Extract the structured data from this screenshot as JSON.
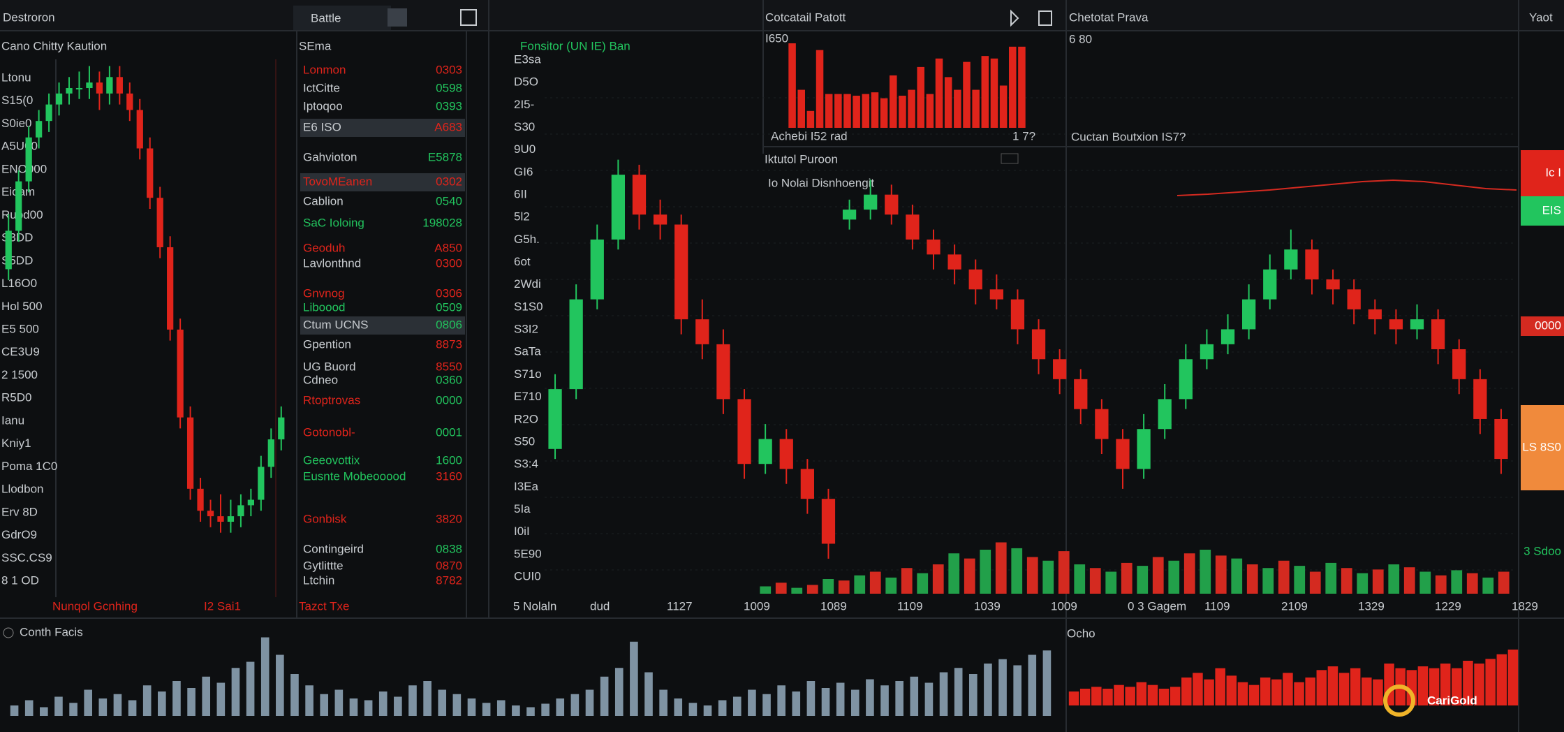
{
  "header": {
    "app_title": "Destroron",
    "tab": "Battle",
    "mid_title": "Cotcatail Patott",
    "right_title": "Chetotat Prava",
    "right_corner": "Yaot"
  },
  "left_panel": {
    "title": "Cano Chitty Kaution",
    "footer_left": "Nunqol Gcnhing",
    "footer_right": "I2 Sai1",
    "axis_labels": [
      "Ltonu",
      "S15(0",
      "S0ie0",
      "A5U00",
      "ENO000",
      "Eioam",
      "Rubd00",
      "S3DD",
      "S5DD",
      "L16O0",
      "Hol 500",
      "E5 500",
      "CE3U9",
      "2 1500",
      "R5D0",
      "Ianu",
      "Kniy1",
      "Poma 1C0",
      "Llodbon",
      "Erv 8D",
      "GdrO9",
      "SSC.CS9",
      "8 1 OD"
    ],
    "ylim": [
      0,
      100
    ],
    "candles": [
      [
        60,
        70,
        58,
        67
      ],
      [
        67,
        78,
        65,
        76
      ],
      [
        76,
        86,
        74,
        84
      ],
      [
        84,
        89,
        82,
        87
      ],
      [
        87,
        92,
        85,
        90
      ],
      [
        90,
        94,
        88,
        92
      ],
      [
        92,
        95,
        90,
        93
      ],
      [
        93,
        96,
        91,
        93
      ],
      [
        93,
        97,
        91,
        94
      ],
      [
        94,
        96,
        89,
        92
      ],
      [
        92,
        97,
        90,
        95
      ],
      [
        95,
        97,
        90,
        92
      ],
      [
        92,
        94,
        87,
        89
      ],
      [
        89,
        91,
        80,
        82
      ],
      [
        82,
        84,
        71,
        73
      ],
      [
        73,
        75,
        62,
        64
      ],
      [
        64,
        66,
        47,
        49
      ],
      [
        49,
        51,
        31,
        33
      ],
      [
        33,
        35,
        18,
        20
      ],
      [
        20,
        22,
        14,
        16
      ],
      [
        16,
        18,
        13,
        15
      ],
      [
        15,
        19,
        12,
        14
      ],
      [
        14,
        18,
        12,
        15
      ],
      [
        15,
        19,
        13,
        17
      ],
      [
        17,
        20,
        15,
        18
      ],
      [
        18,
        26,
        16,
        24
      ],
      [
        24,
        31,
        22,
        29
      ],
      [
        29,
        35,
        27,
        33
      ]
    ]
  },
  "watchlist": {
    "title": "SEma",
    "footer": "Tazct Txe",
    "rows": [
      {
        "name": "Lonmon",
        "value": "0303",
        "name_color": "#e0241b",
        "value_color": "#e0241b",
        "highlight": false
      },
      {
        "name": "IctCitte",
        "value": "0598",
        "name_color": "#c8ccd0",
        "value_color": "#22c55e",
        "highlight": false
      },
      {
        "name": "Iptoqoo",
        "value": "0393",
        "name_color": "#c8ccd0",
        "value_color": "#22c55e",
        "highlight": false
      },
      {
        "name": "E6 ISO",
        "value": "A683",
        "name_color": "#c8ccd0",
        "value_color": "#e0241b",
        "highlight": true
      },
      {
        "name": "Gahvioton",
        "value": "E5878",
        "name_color": "#c8ccd0",
        "value_color": "#22c55e",
        "highlight": false
      },
      {
        "name": "TovoMEanen",
        "value": "0302",
        "name_color": "#e0241b",
        "value_color": "#e0241b",
        "highlight": true
      },
      {
        "name": "Cablion",
        "value": "0540",
        "name_color": "#c8ccd0",
        "value_color": "#22c55e",
        "highlight": false
      },
      {
        "name": "SaC Ioloing",
        "value": "198028",
        "name_color": "#22c55e",
        "value_color": "#22c55e",
        "highlight": false
      },
      {
        "name": "Geoduh",
        "value": "A850",
        "name_color": "#e0241b",
        "value_color": "#e0241b",
        "highlight": false
      },
      {
        "name": "Lavlonthnd",
        "value": "0300",
        "name_color": "#c8ccd0",
        "value_color": "#e0241b",
        "highlight": false
      },
      {
        "name": "Gnvnog",
        "value": "0306",
        "name_color": "#e0241b",
        "value_color": "#e0241b",
        "highlight": false
      },
      {
        "name": "Liboood",
        "value": "0509",
        "name_color": "#22c55e",
        "value_color": "#22c55e",
        "highlight": false
      },
      {
        "name": "Ctum UCNS",
        "value": "0806",
        "name_color": "#c8ccd0",
        "value_color": "#22c55e",
        "highlight": true
      },
      {
        "name": "Gpention",
        "value": "8873",
        "name_color": "#c8ccd0",
        "value_color": "#e0241b",
        "highlight": false
      },
      {
        "name": "UG Buord",
        "value": "8550",
        "name_color": "#c8ccd0",
        "value_color": "#e0241b",
        "highlight": false
      },
      {
        "name": "Cdneo",
        "value": "0360",
        "name_color": "#c8ccd0",
        "value_color": "#22c55e",
        "highlight": false
      },
      {
        "name": "Rtoptrovas",
        "value": "0000",
        "name_color": "#e0241b",
        "value_color": "#22c55e",
        "highlight": false
      },
      {
        "name": "Gotonobl-",
        "value": "0001",
        "name_color": "#e0241b",
        "value_color": "#22c55e",
        "highlight": false
      },
      {
        "name": "Geeovottix",
        "value": "1600",
        "name_color": "#22c55e",
        "value_color": "#22c55e",
        "highlight": false
      },
      {
        "name": "Eusnte Mobeooood",
        "value": "3160",
        "name_color": "#22c55e",
        "value_color": "#e0241b",
        "highlight": false
      },
      {
        "name": "Gonbisk",
        "value": "3820",
        "name_color": "#e0241b",
        "value_color": "#e0241b",
        "highlight": false
      },
      {
        "name": "Contingeird",
        "value": "0838",
        "name_color": "#c8ccd0",
        "value_color": "#22c55e",
        "highlight": false
      },
      {
        "name": "Gytlittte",
        "value": "0870",
        "name_color": "#c8ccd0",
        "value_color": "#e0241b",
        "highlight": false
      },
      {
        "name": "Ltchin",
        "value": "8782",
        "name_color": "#c8ccd0",
        "value_color": "#e0241b",
        "highlight": false
      }
    ]
  },
  "main_chart": {
    "title": "Fonsitor (UN IE) Ban",
    "axis_labels": [
      "E3sa",
      "D5O",
      "2I5-",
      "S30",
      "9U0",
      "GI6",
      "6II",
      "5l2",
      "G5h.",
      "6ot",
      "2Wdi",
      "S1S0",
      "S3I2",
      "SaTa",
      "S71o",
      "E710",
      "R2O",
      "S50",
      "S3:4",
      "I3Ea",
      "5Ia",
      "I0iI",
      "5E90",
      "CUI0"
    ],
    "x_labels": [
      "5 Nolaln",
      "dud",
      "1127",
      "1009",
      "1089",
      "1109",
      "1039",
      "1009",
      "0 3 Gagem",
      "1109",
      "2109",
      "1329",
      "1229",
      "1829"
    ],
    "ylim": [
      0,
      100
    ],
    "candles": [
      [
        30,
        45,
        28,
        42
      ],
      [
        42,
        63,
        40,
        60
      ],
      [
        60,
        75,
        58,
        72
      ],
      [
        72,
        88,
        70,
        85
      ],
      [
        85,
        87,
        74,
        77
      ],
      [
        77,
        80,
        72,
        75
      ],
      [
        75,
        77,
        53,
        56
      ],
      [
        56,
        60,
        48,
        51
      ],
      [
        51,
        54,
        37,
        40
      ],
      [
        40,
        42,
        24,
        27
      ],
      [
        27,
        35,
        25,
        32
      ],
      [
        32,
        34,
        23,
        26
      ],
      [
        26,
        28,
        17,
        20
      ],
      [
        20,
        22,
        8,
        11
      ],
      [
        76,
        80,
        74,
        78
      ],
      [
        78,
        84,
        76,
        81
      ],
      [
        81,
        83,
        75,
        77
      ],
      [
        77,
        79,
        70,
        72
      ],
      [
        72,
        74,
        66,
        69
      ],
      [
        69,
        71,
        63,
        66
      ],
      [
        66,
        68,
        59,
        62
      ],
      [
        62,
        65,
        58,
        60
      ],
      [
        60,
        62,
        51,
        54
      ],
      [
        54,
        56,
        45,
        48
      ],
      [
        48,
        50,
        41,
        44
      ],
      [
        44,
        46,
        35,
        38
      ],
      [
        38,
        40,
        29,
        32
      ],
      [
        32,
        34,
        22,
        26
      ],
      [
        26,
        37,
        24,
        34
      ],
      [
        34,
        43,
        32,
        40
      ],
      [
        40,
        51,
        38,
        48
      ],
      [
        48,
        54,
        46,
        51
      ],
      [
        51,
        57,
        49,
        54
      ],
      [
        54,
        63,
        52,
        60
      ],
      [
        60,
        69,
        58,
        66
      ],
      [
        66,
        74,
        64,
        70
      ],
      [
        70,
        72,
        61,
        64
      ],
      [
        64,
        66,
        59,
        62
      ],
      [
        62,
        64,
        55,
        58
      ],
      [
        58,
        60,
        53,
        56
      ],
      [
        56,
        58,
        51,
        54
      ],
      [
        54,
        59,
        52,
        56
      ],
      [
        56,
        58,
        47,
        50
      ],
      [
        50,
        52,
        41,
        44
      ],
      [
        44,
        46,
        33,
        36
      ],
      [
        36,
        38,
        25,
        28
      ]
    ],
    "volume": {
      "ylim": [
        0,
        100
      ],
      "colors": [
        "#22a04a",
        "#d42a20"
      ],
      "values": [
        10,
        15,
        8,
        12,
        20,
        18,
        25,
        30,
        22,
        35,
        28,
        40,
        55,
        48,
        60,
        70,
        62,
        50,
        45,
        58,
        40,
        35,
        30,
        42,
        38,
        50,
        45,
        55,
        60,
        52,
        48,
        40,
        35,
        45,
        38,
        30,
        42,
        35,
        28,
        33,
        40,
        36,
        30,
        25,
        32,
        28,
        22,
        30
      ]
    }
  },
  "histogram_panel": {
    "label": "I650",
    "caption": "Achebi I52 rad",
    "caption_right": "1 7?",
    "ylim": [
      0,
      100
    ],
    "color": "#e0241b",
    "values": [
      100,
      45,
      20,
      92,
      40,
      40,
      40,
      38,
      40,
      42,
      35,
      62,
      38,
      45,
      72,
      40,
      82,
      60,
      45,
      78,
      45,
      85,
      82,
      50,
      96,
      96
    ]
  },
  "sub_panel": {
    "title": "Iktutol Puroon",
    "subtitle": "Io Nolai Disnhoengit"
  },
  "trend_panel": {
    "label": "6 80",
    "caption": "Cuctan Boutxion IS7?",
    "ylim": [
      0,
      100
    ],
    "color": "#d42a20",
    "values": [
      20,
      22,
      25,
      28,
      32,
      36,
      40,
      42,
      40,
      35,
      30,
      28
    ]
  },
  "price_tags": [
    {
      "label": "Ic I",
      "color": "#e0241b"
    },
    {
      "label": "EIS",
      "color": "#22c55e"
    },
    {
      "label": "0000",
      "color": "#d42a20"
    },
    {
      "label": "LS 8S0",
      "color": "#f08a3c"
    },
    {
      "label": "3 Sdoo",
      "color": "#0d0f11"
    }
  ],
  "bottom": {
    "flow_title": "Conth Facis",
    "delta_title": "Ocho",
    "flow": {
      "ylim": [
        0,
        100
      ],
      "color": "#7f93a3",
      "values": [
        12,
        18,
        10,
        22,
        15,
        30,
        20,
        25,
        18,
        35,
        28,
        40,
        32,
        45,
        38,
        55,
        62,
        90,
        70,
        48,
        35,
        25,
        30,
        20,
        18,
        28,
        22,
        35,
        40,
        30,
        25,
        20,
        15,
        18,
        12,
        10,
        14,
        20,
        25,
        30,
        45,
        55,
        85,
        50,
        30,
        20,
        15,
        12,
        18,
        22,
        30,
        25,
        35,
        28,
        40,
        32,
        38,
        30,
        42,
        35,
        40,
        45,
        38,
        50,
        55,
        48,
        60,
        65,
        58,
        70,
        75
      ]
    },
    "delta": {
      "ylim": [
        -60,
        0
      ],
      "color": "#e0241b",
      "values": [
        -15,
        -18,
        -20,
        -18,
        -22,
        -20,
        -25,
        -22,
        -18,
        -20,
        -30,
        -35,
        -28,
        -40,
        -32,
        -25,
        -22,
        -30,
        -28,
        -35,
        -25,
        -30,
        -38,
        -42,
        -35,
        -40,
        -30,
        -28,
        -45,
        -40,
        -38,
        -42,
        -40,
        -45,
        -40,
        -48,
        -45,
        -50,
        -55,
        -60
      ]
    }
  },
  "logo": "CariGold"
}
